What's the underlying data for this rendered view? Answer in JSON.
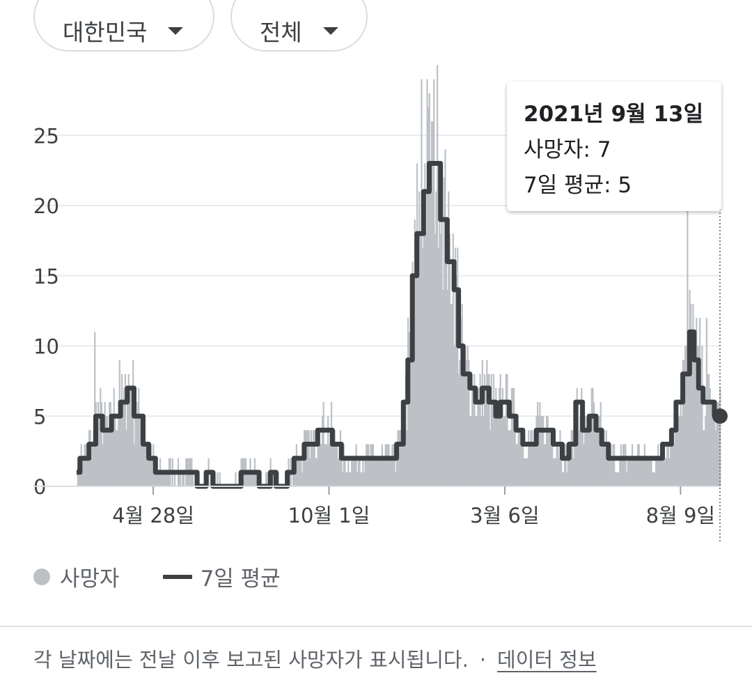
{
  "filters": {
    "region": "대한민국",
    "age": "전체"
  },
  "tooltip": {
    "date": "2021년 9월 13일",
    "deaths_text": "사망자: 7",
    "avg_text": "7일 평균: 5"
  },
  "legend": {
    "deaths_label": "사망자",
    "avg_label": "7일 평균"
  },
  "footer": {
    "note": "각 날짜에는 전날 이후 보고된 사망자가 표시됩니다.",
    "separator": "·",
    "link": "데이터 정보"
  },
  "colors": {
    "bars": "#bdc1c6",
    "avg_line": "#3c4043",
    "grid": "#e8eaed"
  },
  "chart_data": {
    "type": "bar",
    "series": [
      {
        "name": "사망자",
        "type": "bar"
      },
      {
        "name": "7일 평균",
        "type": "line"
      }
    ],
    "ylim": [
      0,
      29
    ],
    "yticks": [
      0,
      5,
      10,
      15,
      20,
      25
    ],
    "x_ticks": [
      {
        "label": "4월 28일",
        "date": "2020-04-28"
      },
      {
        "label": "10월 1일",
        "date": "2020-10-01"
      },
      {
        "label": "3월 6일",
        "date": "2021-03-06"
      },
      {
        "label": "8월 9일",
        "date": "2021-08-09"
      }
    ],
    "x_start": "2020-02-20",
    "x_end": "2021-09-13",
    "grid": true,
    "highlight": {
      "date": "2021-09-13",
      "deaths": 7,
      "avg": 5
    },
    "seven_day_avg": [
      [
        "2020-02-20",
        1
      ],
      [
        "2020-02-23",
        2
      ],
      [
        "2020-03-02",
        3
      ],
      [
        "2020-03-08",
        5
      ],
      [
        "2020-03-14",
        4
      ],
      [
        "2020-03-22",
        5
      ],
      [
        "2020-03-30",
        6
      ],
      [
        "2020-04-05",
        7
      ],
      [
        "2020-04-11",
        5
      ],
      [
        "2020-04-16",
        5
      ],
      [
        "2020-04-19",
        3
      ],
      [
        "2020-04-24",
        2
      ],
      [
        "2020-04-30",
        1
      ],
      [
        "2020-05-31",
        1
      ],
      [
        "2020-06-06",
        0
      ],
      [
        "2020-06-14",
        1
      ],
      [
        "2020-06-20",
        0
      ],
      [
        "2020-07-09",
        0
      ],
      [
        "2020-07-15",
        1
      ],
      [
        "2020-07-31",
        0
      ],
      [
        "2020-08-10",
        1
      ],
      [
        "2020-08-15",
        0
      ],
      [
        "2020-08-25",
        1
      ],
      [
        "2020-08-31",
        2
      ],
      [
        "2020-09-09",
        3
      ],
      [
        "2020-09-21",
        4
      ],
      [
        "2020-10-04",
        3
      ],
      [
        "2020-10-12",
        2
      ],
      [
        "2020-11-20",
        2
      ],
      [
        "2020-11-30",
        3
      ],
      [
        "2020-12-06",
        6
      ],
      [
        "2020-12-10",
        9
      ],
      [
        "2020-12-14",
        15
      ],
      [
        "2020-12-18",
        18
      ],
      [
        "2020-12-24",
        21
      ],
      [
        "2020-12-29",
        23
      ],
      [
        "2021-01-04",
        23
      ],
      [
        "2021-01-08",
        19
      ],
      [
        "2021-01-14",
        16
      ],
      [
        "2021-01-20",
        14
      ],
      [
        "2021-01-24",
        10
      ],
      [
        "2021-01-28",
        8
      ],
      [
        "2021-02-03",
        7
      ],
      [
        "2021-02-08",
        6
      ],
      [
        "2021-02-14",
        7
      ],
      [
        "2021-02-20",
        6
      ],
      [
        "2021-02-26",
        5
      ],
      [
        "2021-03-02",
        6
      ],
      [
        "2021-03-10",
        5
      ],
      [
        "2021-03-16",
        4
      ],
      [
        "2021-03-22",
        3
      ],
      [
        "2021-04-03",
        4
      ],
      [
        "2021-04-18",
        3
      ],
      [
        "2021-04-26",
        2
      ],
      [
        "2021-05-02",
        3
      ],
      [
        "2021-05-08",
        6
      ],
      [
        "2021-05-14",
        4
      ],
      [
        "2021-05-20",
        5
      ],
      [
        "2021-05-26",
        4
      ],
      [
        "2021-05-31",
        3
      ],
      [
        "2021-06-06",
        2
      ],
      [
        "2021-07-18",
        2
      ],
      [
        "2021-07-24",
        3
      ],
      [
        "2021-08-01",
        4
      ],
      [
        "2021-08-05",
        6
      ],
      [
        "2021-08-11",
        8
      ],
      [
        "2021-08-17",
        11
      ],
      [
        "2021-08-21",
        9
      ],
      [
        "2021-08-25",
        7
      ],
      [
        "2021-08-29",
        6
      ],
      [
        "2021-09-04",
        6
      ],
      [
        "2021-09-08",
        5
      ],
      [
        "2021-09-13",
        5
      ]
    ],
    "daily_bar_spikes": [
      [
        "2020-03-07",
        11
      ],
      [
        "2020-03-29",
        9
      ],
      [
        "2020-12-22",
        29
      ],
      [
        "2020-12-27",
        29
      ],
      [
        "2020-12-31",
        26
      ],
      [
        "2021-01-09",
        20
      ],
      [
        "2021-08-15",
        20
      ],
      [
        "2021-08-20",
        13
      ],
      [
        "2021-08-26",
        12
      ],
      [
        "2021-09-01",
        12
      ]
    ]
  }
}
